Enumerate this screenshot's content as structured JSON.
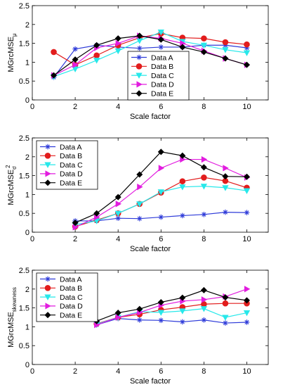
{
  "chart_data": [
    {
      "type": "line",
      "ylabel_main": "MGrcMSE",
      "ylabel_sub": "μ",
      "xlabel": "Scale factor",
      "xlim": [
        0,
        11
      ],
      "ylim": [
        0,
        2.5
      ],
      "xticks": [
        0,
        2,
        4,
        6,
        8,
        10
      ],
      "yticks": [
        0,
        0.5,
        1,
        1.5,
        2,
        2.5
      ],
      "legend_position": "lower-center",
      "series": [
        {
          "name": "Data  A",
          "color": "#2e3bd9",
          "marker": "asterisk",
          "x": [
            1,
            2,
            3,
            4,
            5,
            6,
            7,
            8,
            9,
            10
          ],
          "y": [
            0.6,
            1.35,
            1.45,
            1.4,
            1.37,
            1.4,
            1.4,
            1.45,
            1.45,
            1.38
          ]
        },
        {
          "name": "Data  B",
          "color": "#e21d1d",
          "marker": "circle",
          "x": [
            1,
            2,
            3,
            4,
            5,
            6,
            7,
            8,
            9,
            10
          ],
          "y": [
            1.27,
            0.93,
            1.18,
            1.45,
            1.65,
            1.76,
            1.65,
            1.63,
            1.53,
            1.47
          ]
        },
        {
          "name": "Data  C",
          "color": "#27e8ea",
          "marker": "triangle-down",
          "x": [
            1,
            2,
            3,
            4,
            5,
            6,
            7,
            8,
            9,
            10
          ],
          "y": [
            0.62,
            0.82,
            1.05,
            1.3,
            1.57,
            1.8,
            1.55,
            1.45,
            1.33,
            1.25
          ]
        },
        {
          "name": "Data  D",
          "color": "#e21ddf",
          "marker": "triangle-right",
          "x": [
            1,
            2,
            3,
            4,
            5,
            6,
            7,
            8,
            9,
            10
          ],
          "y": [
            0.65,
            0.93,
            1.38,
            1.5,
            1.7,
            1.63,
            1.5,
            1.3,
            1.1,
            0.93
          ]
        },
        {
          "name": "Data  E",
          "color": "#000000",
          "marker": "diamond",
          "x": [
            1,
            2,
            3,
            4,
            5,
            6,
            7,
            8,
            9,
            10
          ],
          "y": [
            0.65,
            1.07,
            1.45,
            1.63,
            1.7,
            1.6,
            1.4,
            1.27,
            1.1,
            0.93
          ]
        }
      ]
    },
    {
      "type": "line",
      "ylabel_main": "MGrcMSE",
      "ylabel_sub": "σ",
      "ylabel_sup": "2",
      "xlabel": "Scale factor",
      "xlim": [
        0,
        11
      ],
      "ylim": [
        0,
        2.5
      ],
      "xticks": [
        0,
        2,
        4,
        6,
        8,
        10
      ],
      "yticks": [
        0,
        0.5,
        1,
        1.5,
        2,
        2.5
      ],
      "legend_position": "top-left",
      "series": [
        {
          "name": "Data  A",
          "color": "#2e3bd9",
          "marker": "asterisk",
          "x": [
            2,
            3,
            4,
            5,
            6,
            7,
            8,
            9,
            10
          ],
          "y": [
            0.3,
            0.3,
            0.37,
            0.36,
            0.4,
            0.44,
            0.47,
            0.53,
            0.52
          ]
        },
        {
          "name": "Data  B",
          "color": "#e21d1d",
          "marker": "circle",
          "x": [
            2,
            3,
            4,
            5,
            6,
            7,
            8,
            9,
            10
          ],
          "y": [
            0.15,
            0.32,
            0.5,
            0.75,
            1.05,
            1.35,
            1.45,
            1.36,
            1.18
          ]
        },
        {
          "name": "Data  C",
          "color": "#27e8ea",
          "marker": "triangle-down",
          "x": [
            2,
            3,
            4,
            5,
            6,
            7,
            8,
            9,
            10
          ],
          "y": [
            0.2,
            0.3,
            0.5,
            0.75,
            1.07,
            1.2,
            1.22,
            1.18,
            1.1
          ]
        },
        {
          "name": "Data  D",
          "color": "#e21ddf",
          "marker": "triangle-right",
          "x": [
            2,
            3,
            4,
            5,
            6,
            7,
            8,
            9,
            10
          ],
          "y": [
            0.13,
            0.4,
            0.75,
            1.2,
            1.7,
            1.93,
            1.93,
            1.7,
            1.45
          ]
        },
        {
          "name": "Data  E",
          "color": "#000000",
          "marker": "diamond",
          "x": [
            2,
            3,
            4,
            5,
            6,
            7,
            8,
            9,
            10
          ],
          "y": [
            0.25,
            0.5,
            0.93,
            1.53,
            2.13,
            2.03,
            1.72,
            1.48,
            1.47
          ]
        }
      ]
    },
    {
      "type": "line",
      "ylabel_main": "MGrcMSE",
      "ylabel_sub": "skewness",
      "xlabel": "Scale factor",
      "xlim": [
        0,
        11
      ],
      "ylim": [
        0,
        2.5
      ],
      "xticks": [
        0,
        2,
        4,
        6,
        8,
        10
      ],
      "yticks": [
        0,
        0.5,
        1,
        1.5,
        2,
        2.5
      ],
      "legend_position": "top-left",
      "series": [
        {
          "name": "Data  A",
          "color": "#2e3bd9",
          "marker": "asterisk",
          "x": [
            3,
            4,
            5,
            6,
            7,
            8,
            9,
            10
          ],
          "y": [
            1.05,
            1.22,
            1.18,
            1.17,
            1.13,
            1.18,
            1.1,
            1.12
          ]
        },
        {
          "name": "Data  B",
          "color": "#e21d1d",
          "marker": "circle",
          "x": [
            3,
            4,
            5,
            6,
            7,
            8,
            9,
            10
          ],
          "y": [
            1.08,
            1.25,
            1.33,
            1.45,
            1.52,
            1.6,
            1.62,
            1.62
          ]
        },
        {
          "name": "Data  C",
          "color": "#27e8ea",
          "marker": "triangle-down",
          "x": [
            3,
            4,
            5,
            6,
            7,
            8,
            9,
            10
          ],
          "y": [
            1.07,
            1.25,
            1.4,
            1.38,
            1.42,
            1.48,
            1.25,
            1.37
          ]
        },
        {
          "name": "Data  D",
          "color": "#e21ddf",
          "marker": "triangle-right",
          "x": [
            3,
            4,
            5,
            6,
            7,
            8,
            9,
            10
          ],
          "y": [
            1.05,
            1.25,
            1.38,
            1.57,
            1.68,
            1.72,
            1.8,
            2.0
          ]
        },
        {
          "name": "Data  E",
          "color": "#000000",
          "marker": "diamond",
          "x": [
            3,
            4,
            5,
            6,
            7,
            8,
            9,
            10
          ],
          "y": [
            1.15,
            1.37,
            1.47,
            1.65,
            1.77,
            1.97,
            1.78,
            1.7
          ]
        }
      ]
    }
  ]
}
